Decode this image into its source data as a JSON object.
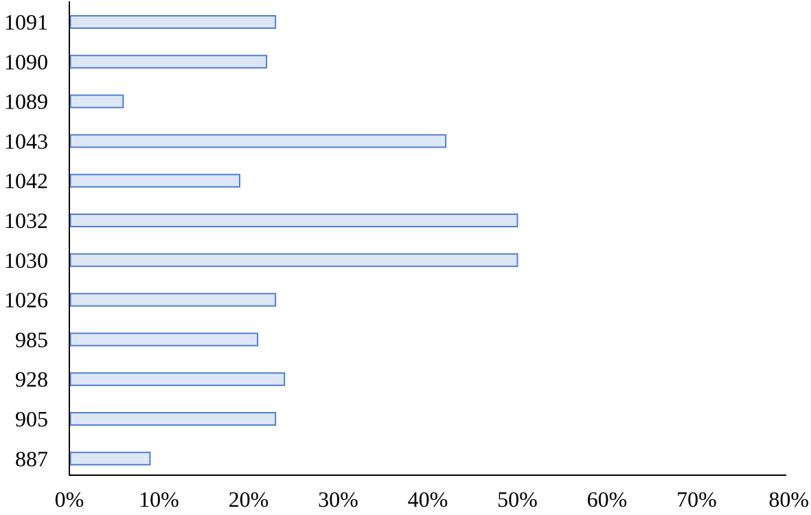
{
  "chart_data": {
    "type": "bar",
    "orientation": "horizontal",
    "title": "",
    "xlabel": "",
    "ylabel": "",
    "categories": [
      "1091",
      "1090",
      "1089",
      "1043",
      "1042",
      "1032",
      "1030",
      "1026",
      "985",
      "928",
      "905",
      "887"
    ],
    "values": [
      23,
      22,
      6,
      42,
      19,
      50,
      50,
      23,
      21,
      24,
      23,
      9
    ],
    "value_unit": "%",
    "xlim": [
      0,
      80
    ],
    "x_ticks": [
      0,
      10,
      20,
      30,
      40,
      50,
      60,
      70,
      80
    ],
    "x_tick_labels": [
      "0%",
      "10%",
      "20%",
      "30%",
      "40%",
      "50%",
      "60%",
      "70%",
      "80%"
    ],
    "grid": false,
    "legend": "none",
    "colors": {
      "bar_fill": "#dde6f5",
      "bar_stroke": "#4f7ed6",
      "axis": "#000000"
    }
  }
}
